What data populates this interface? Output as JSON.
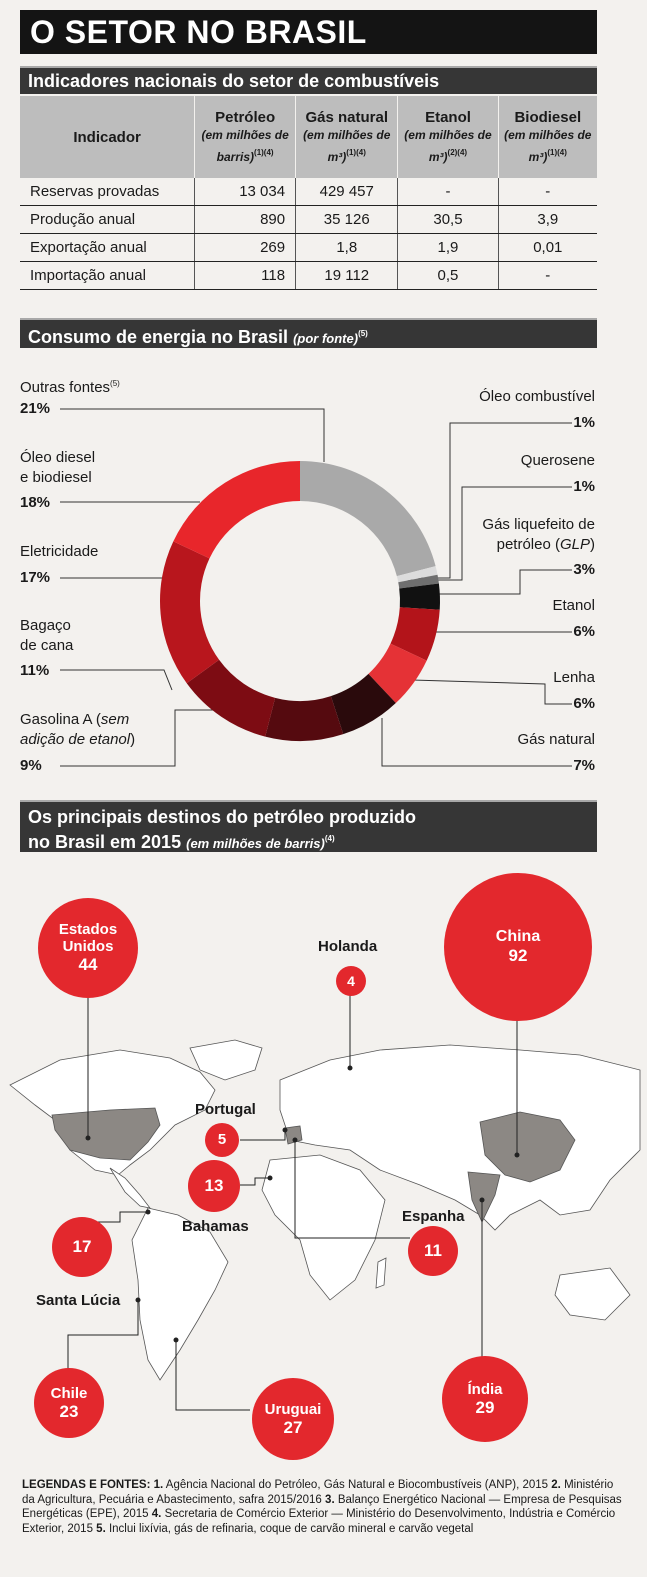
{
  "title": "O SETOR NO BRASIL",
  "indicators": {
    "heading": "Indicadores nacionais do setor de combustíveis",
    "columns": [
      {
        "name": "Indicador",
        "unit": "",
        "notes": ""
      },
      {
        "name": "Petróleo",
        "unit": "(em milhões de barris)",
        "notes": "(1)(4)"
      },
      {
        "name": "Gás natural",
        "unit": "(em milhões de m³)",
        "notes": "(1)(4)"
      },
      {
        "name": "Etanol",
        "unit": "(em milhões de m³)",
        "notes": "(2)(4)"
      },
      {
        "name": "Biodiesel",
        "unit": "(em milhões de m³)",
        "notes": "(1)(4)"
      }
    ],
    "rows": [
      [
        "Reservas provadas",
        "13 034",
        "429 457",
        "-",
        "-"
      ],
      [
        "Produção anual",
        "890",
        "35 126",
        "30,5",
        "3,9"
      ],
      [
        "Exportação anual",
        "269",
        "1,8",
        "1,9",
        "0,01"
      ],
      [
        "Importação anual",
        "118",
        "19 112",
        "0,5",
        "-"
      ]
    ]
  },
  "consumption": {
    "heading": "Consumo de energia no Brasil",
    "heading_note": "(por fonte)",
    "heading_sup": "(5)",
    "chart_data": {
      "type": "pie",
      "title": "Consumo de energia no Brasil",
      "slices": [
        {
          "label": "Outras fontes",
          "note": "(5)",
          "value": 21,
          "pct": "21%",
          "color": "#a9a9a9"
        },
        {
          "label": "Óleo combustível",
          "value": 1,
          "pct": "1%",
          "color": "#dcdcdc"
        },
        {
          "label": "Querosene",
          "value": 1,
          "pct": "1%",
          "color": "#6f6f6f"
        },
        {
          "label": "Gás liquefeito de petróleo (GLP)",
          "value": 3,
          "pct": "3%",
          "color": "#111111"
        },
        {
          "label": "Etanol",
          "value": 6,
          "pct": "6%",
          "color": "#b3141a"
        },
        {
          "label": "Lenha",
          "value": 6,
          "pct": "6%",
          "color": "#e53236"
        },
        {
          "label": "Gás natural",
          "value": 7,
          "pct": "7%",
          "color": "#2a0a0c"
        },
        {
          "label": "Gasolina A (sem adição de etanol)",
          "value": 9,
          "pct": "9%",
          "color": "#550a0f"
        },
        {
          "label": "Bagaço de cana",
          "value": 11,
          "pct": "11%",
          "color": "#7d0c13"
        },
        {
          "label": "Eletricidade",
          "value": 17,
          "pct": "17%",
          "color": "#b8161d"
        },
        {
          "label": "Óleo diesel e biodiesel",
          "value": 18,
          "pct": "18%",
          "color": "#e8262b"
        }
      ]
    },
    "labels": {
      "outras": "Outras fontes",
      "outras_note": "(5)",
      "outras_pct": "21%",
      "diesel1": "Óleo diesel",
      "diesel2": "e biodiesel",
      "diesel_pct": "18%",
      "eletric": "Eletricidade",
      "eletric_pct": "17%",
      "bagaco1": "Bagaço",
      "bagaco2": "de cana",
      "bagaco_pct": "11%",
      "gasolina1": "Gasolina A (",
      "gasolina_it1": "sem",
      "gasolina_it2": "adição de etanol",
      "gasolina_end": ")",
      "gasolina_pct": "9%",
      "oleo": "Óleo combustível",
      "oleo_pct": "1%",
      "querosene": "Querosene",
      "querosene_pct": "1%",
      "glp1": "Gás liquefeito de",
      "glp2": "petróleo (",
      "glp_it": "GLP",
      "glp_end": ")",
      "glp_pct": "3%",
      "etanol": "Etanol",
      "etanol_pct": "6%",
      "lenha": "Lenha",
      "lenha_pct": "6%",
      "gasnat": "Gás natural",
      "gasnat_pct": "7%"
    }
  },
  "destinations": {
    "heading1": "Os principais destinos do petróleo produzido",
    "heading2": "no Brasil em 2015",
    "heading_note": "(em milhões de barris)",
    "heading_sup": "(4)",
    "items": [
      {
        "country": "Estados Unidos",
        "value": "44"
      },
      {
        "country": "Holanda",
        "value": "4"
      },
      {
        "country": "China",
        "value": "92"
      },
      {
        "country": "Portugal",
        "value": "5"
      },
      {
        "country": "Bahamas",
        "value": "13"
      },
      {
        "country": "Santa Lúcia",
        "value": "17"
      },
      {
        "country": "Espanha",
        "value": "11"
      },
      {
        "country": "Chile",
        "value": "23"
      },
      {
        "country": "Uruguai",
        "value": "27"
      },
      {
        "country": "Índia",
        "value": "29"
      }
    ]
  },
  "footer": {
    "heading": "LEGENDAS E FONTES:",
    "sources": [
      {
        "num": "1.",
        "text": "Agência Nacional do Petróleo, Gás Natural e Biocombustíveis (ANP), 2015"
      },
      {
        "num": "2.",
        "text": "Ministério da Agricultura, Pecuária e Abastecimento, safra 2015/2016"
      },
      {
        "num": "3.",
        "text": "Balanço Energético Nacional — Empresa de Pesquisas Energéticas (EPE), 2015"
      },
      {
        "num": "4.",
        "text": "Secretaria de Comércio Exterior — Ministério do Desenvolvimento, Indústria e Comércio Exterior, 2015"
      },
      {
        "num": "5.",
        "text": "Inclui lixívia, gás de refinaria, coque de carvão mineral e carvão vegetal"
      }
    ]
  }
}
